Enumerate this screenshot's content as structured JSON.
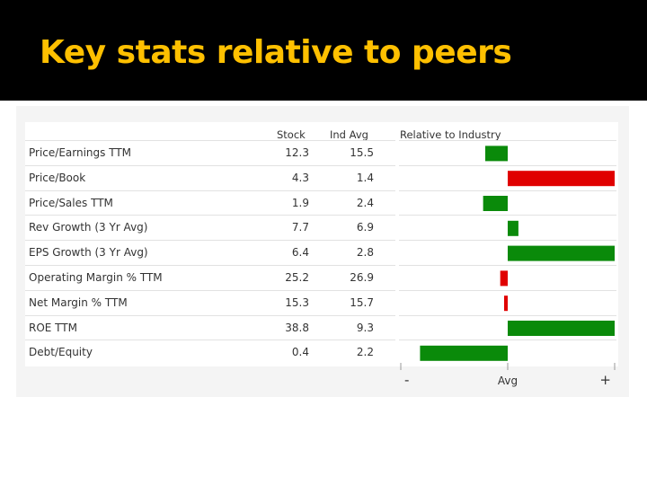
{
  "slide": {
    "title": "Key stats relative to peers"
  },
  "table": {
    "headers": {
      "stock": "Stock",
      "ind_avg": "Ind Avg",
      "relative": "Relative to Industry"
    },
    "rows": [
      {
        "label": "Price/Earnings TTM",
        "stock": "12.3",
        "ind_avg": "15.5"
      },
      {
        "label": "Price/Book",
        "stock": "4.3",
        "ind_avg": "1.4"
      },
      {
        "label": "Price/Sales TTM",
        "stock": "1.9",
        "ind_avg": "2.4"
      },
      {
        "label": "Rev Growth (3 Yr Avg)",
        "stock": "7.7",
        "ind_avg": "6.9"
      },
      {
        "label": "EPS Growth (3 Yr Avg)",
        "stock": "6.4",
        "ind_avg": "2.8"
      },
      {
        "label": "Operating Margin % TTM",
        "stock": "25.2",
        "ind_avg": "26.9"
      },
      {
        "label": "Net Margin % TTM",
        "stock": "15.3",
        "ind_avg": "15.7"
      },
      {
        "label": "ROE TTM",
        "stock": "38.8",
        "ind_avg": "9.3"
      },
      {
        "label": "Debt/Equity",
        "stock": "0.4",
        "ind_avg": "2.2"
      }
    ]
  },
  "chart_data": {
    "type": "bar",
    "orientation": "horizontal",
    "title": "Relative to Industry",
    "categories": [
      "Price/Earnings TTM",
      "Price/Book",
      "Price/Sales TTM",
      "Rev Growth (3 Yr Avg)",
      "EPS Growth (3 Yr Avg)",
      "Operating Margin % TTM",
      "Net Margin % TTM",
      "ROE TTM",
      "Debt/Equity"
    ],
    "values": [
      -0.21,
      1.0,
      -0.23,
      0.1,
      1.0,
      -0.07,
      -0.03,
      1.0,
      -0.82
    ],
    "colors": [
      "#0a8a0a",
      "#e00000",
      "#0a8a0a",
      "#0a8a0a",
      "#0a8a0a",
      "#e00000",
      "#e00000",
      "#0a8a0a",
      "#0a8a0a"
    ],
    "xlim": [
      -1,
      1
    ],
    "axis_labels": {
      "min": "-",
      "center": "Avg",
      "max": "+"
    },
    "grid": false
  }
}
